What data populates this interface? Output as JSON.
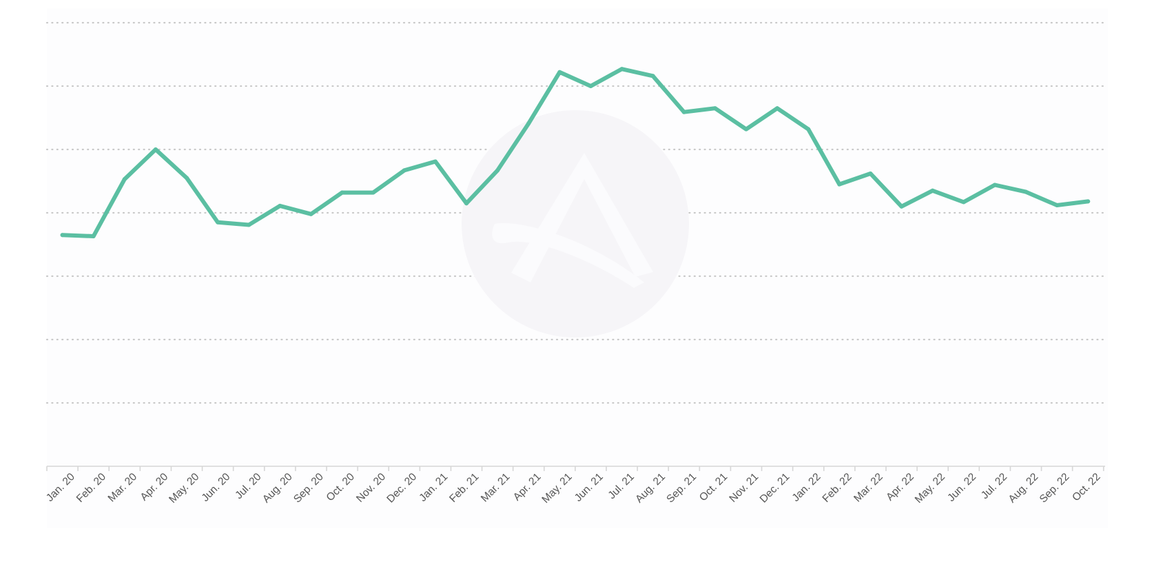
{
  "chart_data": {
    "type": "line",
    "title": "",
    "xlabel": "",
    "ylabel": "",
    "x": [
      "Jan. 20",
      "Feb. 20",
      "Mar. 20",
      "Apr. 20",
      "May. 20",
      "Jun. 20",
      "Jul. 20",
      "Aug. 20",
      "Sep. 20",
      "Oct. 20",
      "Nov. 20",
      "Dec. 20",
      "Jan. 21",
      "Feb. 21",
      "Mar. 21",
      "Apr. 21",
      "May. 21",
      "Jun. 21",
      "Jul. 21",
      "Aug. 21",
      "Sep. 21",
      "Oct. 21",
      "Nov. 21",
      "Dec. 21",
      "Jan. 22",
      "Feb. 22",
      "Mar. 22",
      "Apr. 22",
      "May. 22",
      "Jun. 22",
      "Jul. 22",
      "Aug. 22",
      "Sep. 22",
      "Oct. 22"
    ],
    "series": [
      {
        "color": "#5bbfa2",
        "values": [
          3.65,
          3.63,
          4.53,
          5.0,
          4.55,
          3.85,
          3.81,
          4.11,
          3.98,
          4.32,
          4.32,
          4.67,
          4.81,
          4.15,
          4.67,
          5.41,
          6.22,
          6.0,
          6.27,
          6.16,
          5.59,
          5.65,
          5.32,
          5.65,
          5.32,
          4.45,
          4.62,
          4.1,
          4.35,
          4.17,
          4.44,
          4.33,
          4.12,
          4.18
        ]
      }
    ],
    "ylim": [
      0,
      7
    ],
    "yticks_shown": false,
    "grid": "horizontal-dotted",
    "legend": "none",
    "watermark": "circular-logo"
  }
}
